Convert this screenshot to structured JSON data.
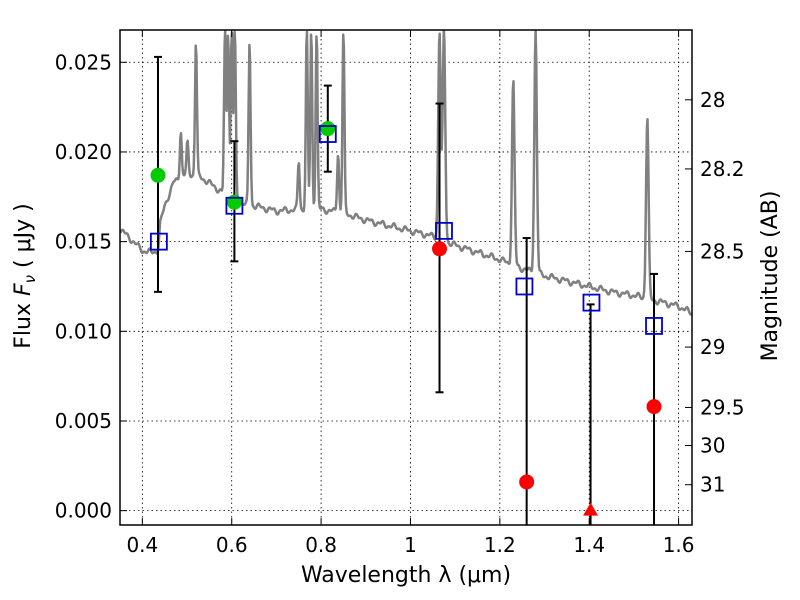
{
  "chart_data": {
    "type": "scatter",
    "title": "",
    "xlabel": "Wavelength  λ (μm)",
    "ylabel": "Flux  F_ν  ( μJy )",
    "ylabel_parts": {
      "pre": "Flux  ",
      "sym": "F",
      "sub": "ν",
      "post": "  ( μJy )"
    },
    "y2label": "Magnitude (AB)",
    "xlim": [
      0.35,
      1.63
    ],
    "ylim": [
      -0.0008,
      0.0268
    ],
    "grid": true,
    "x_ticks": [
      {
        "v": 0.4,
        "label": "0.4"
      },
      {
        "v": 0.6,
        "label": "0.6"
      },
      {
        "v": 0.8,
        "label": "0.8"
      },
      {
        "v": 1.0,
        "label": "1"
      },
      {
        "v": 1.2,
        "label": "1.2"
      },
      {
        "v": 1.4,
        "label": "1.4"
      },
      {
        "v": 1.6,
        "label": "1.6"
      }
    ],
    "y_ticks": [
      {
        "v": 0.0,
        "label": "0.000"
      },
      {
        "v": 0.005,
        "label": "0.005"
      },
      {
        "v": 0.01,
        "label": "0.010"
      },
      {
        "v": 0.015,
        "label": "0.015"
      },
      {
        "v": 0.02,
        "label": "0.020"
      },
      {
        "v": 0.025,
        "label": "0.025"
      }
    ],
    "y2_ticks": [
      {
        "mag": 28,
        "label": "28"
      },
      {
        "mag": 28.2,
        "label": "28.2"
      },
      {
        "mag": 28.5,
        "label": "28.5"
      },
      {
        "mag": 29,
        "label": "29"
      },
      {
        "mag": 29.5,
        "label": "29.5"
      },
      {
        "mag": 30,
        "label": "30"
      },
      {
        "mag": 31,
        "label": "31"
      }
    ],
    "colors": {
      "template": "#808080",
      "model_box": "#0000cc",
      "detection": "#00cc00",
      "upper_limit": "#ff0000",
      "errorbar": "#000000"
    },
    "template_spectrum": {
      "continuum": [
        [
          0.35,
          0.0157
        ],
        [
          0.38,
          0.015
        ],
        [
          0.4,
          0.0145
        ],
        [
          0.42,
          0.0144
        ],
        [
          0.435,
          0.0145
        ],
        [
          0.44,
          0.016
        ],
        [
          0.45,
          0.017
        ],
        [
          0.47,
          0.0183
        ],
        [
          0.5,
          0.0188
        ],
        [
          0.53,
          0.0186
        ],
        [
          0.56,
          0.0181
        ],
        [
          0.6,
          0.0173
        ],
        [
          0.65,
          0.017
        ],
        [
          0.7,
          0.0167
        ],
        [
          0.75,
          0.0168
        ],
        [
          0.8,
          0.0168
        ],
        [
          0.85,
          0.0166
        ],
        [
          0.9,
          0.0162
        ],
        [
          0.95,
          0.0159
        ],
        [
          1.0,
          0.0156
        ],
        [
          1.05,
          0.0153
        ],
        [
          1.1,
          0.0148
        ],
        [
          1.15,
          0.0144
        ],
        [
          1.2,
          0.014
        ],
        [
          1.25,
          0.0135
        ],
        [
          1.3,
          0.0131
        ],
        [
          1.35,
          0.0128
        ],
        [
          1.4,
          0.0125
        ],
        [
          1.45,
          0.0122
        ],
        [
          1.5,
          0.012
        ],
        [
          1.55,
          0.0117
        ],
        [
          1.6,
          0.0114
        ],
        [
          1.63,
          0.011
        ]
      ],
      "lines": [
        {
          "x": 0.486,
          "peak": 0.0212,
          "w": 0.003
        },
        {
          "x": 0.501,
          "peak": 0.0205,
          "w": 0.003
        },
        {
          "x": 0.52,
          "peak": 0.0262,
          "w": 0.003
        },
        {
          "x": 0.585,
          "peak": 0.0268,
          "w": 0.003
        },
        {
          "x": 0.592,
          "peak": 0.0268,
          "w": 0.003
        },
        {
          "x": 0.6,
          "peak": 0.0268,
          "w": 0.003
        },
        {
          "x": 0.607,
          "peak": 0.0268,
          "w": 0.003
        },
        {
          "x": 0.64,
          "peak": 0.0262,
          "w": 0.003
        },
        {
          "x": 0.75,
          "peak": 0.0195,
          "w": 0.003
        },
        {
          "x": 0.768,
          "peak": 0.0268,
          "w": 0.003
        },
        {
          "x": 0.778,
          "peak": 0.0268,
          "w": 0.003
        },
        {
          "x": 0.79,
          "peak": 0.0268,
          "w": 0.003
        },
        {
          "x": 0.838,
          "peak": 0.02,
          "w": 0.003
        },
        {
          "x": 0.85,
          "peak": 0.0268,
          "w": 0.003
        },
        {
          "x": 1.065,
          "peak": 0.0268,
          "w": 0.004
        },
        {
          "x": 1.075,
          "peak": 0.0268,
          "w": 0.004
        },
        {
          "x": 1.23,
          "peak": 0.024,
          "w": 0.004
        },
        {
          "x": 1.28,
          "peak": 0.0268,
          "w": 0.004
        },
        {
          "x": 1.53,
          "peak": 0.022,
          "w": 0.004
        }
      ]
    },
    "series": [
      {
        "kind": "model_box",
        "points": [
          {
            "x": 0.437,
            "y": 0.015
          },
          {
            "x": 0.606,
            "y": 0.017
          },
          {
            "x": 0.815,
            "y": 0.021
          },
          {
            "x": 1.075,
            "y": 0.0156
          },
          {
            "x": 1.255,
            "y": 0.0125
          },
          {
            "x": 1.405,
            "y": 0.0116
          },
          {
            "x": 1.545,
            "y": 0.0103
          }
        ]
      },
      {
        "kind": "detection",
        "points": [
          {
            "x": 0.435,
            "y": 0.0187,
            "err_lo": 0.0122,
            "err_hi": 0.0253
          },
          {
            "x": 0.606,
            "y": 0.0172,
            "err_lo": 0.0139,
            "err_hi": 0.0206
          },
          {
            "x": 0.815,
            "y": 0.0213,
            "err_lo": 0.0189,
            "err_hi": 0.0237
          }
        ]
      },
      {
        "kind": "upper_limit",
        "points": [
          {
            "x": 1.065,
            "y": 0.0146,
            "err_lo": 0.0066,
            "err_hi": 0.0227
          },
          {
            "x": 1.26,
            "y": 0.0016,
            "err_lo": -0.0008,
            "err_hi": 0.0152
          },
          {
            "x": 1.545,
            "y": 0.0058,
            "err_lo": -0.0008,
            "err_hi": 0.0132
          }
        ]
      },
      {
        "kind": "upper_limit_triangle",
        "points": [
          {
            "x": 1.403,
            "y": 0.0,
            "err_lo": -0.0008,
            "err_hi": 0.0115
          }
        ]
      }
    ]
  }
}
